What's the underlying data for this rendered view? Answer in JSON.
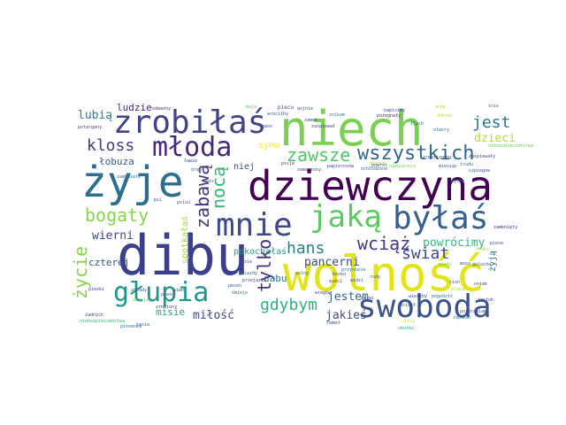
{
  "wordcloud": {
    "words": [
      {
        "text": "dibu",
        "color": "#3b3f8c"
      },
      {
        "text": "niech",
        "color": "#7ad151"
      },
      {
        "text": "dziewczyna",
        "color": "#440154"
      },
      {
        "text": "wolność",
        "color": "#e2e418"
      },
      {
        "text": "żyje",
        "color": "#2e6e8e"
      },
      {
        "text": "zrobiłaś",
        "color": "#414487"
      },
      {
        "text": "młoda",
        "color": "#482878"
      },
      {
        "text": "jaką",
        "color": "#5ec962"
      },
      {
        "text": "byłaś",
        "color": "#355f8d"
      },
      {
        "text": "mnie",
        "color": "#3e4a89"
      },
      {
        "text": "swoboda",
        "color": "#3b528b"
      },
      {
        "text": "głupia",
        "color": "#1f988b"
      },
      {
        "text": "wszystkich",
        "color": "#31688e"
      },
      {
        "text": "zawsze",
        "color": "#52c569"
      },
      {
        "text": "kloss",
        "color": "#443983"
      },
      {
        "text": "jest",
        "color": "#2a788e"
      },
      {
        "text": "bogaty",
        "color": "#86d549"
      },
      {
        "text": "zabawą",
        "color": "#46327e"
      },
      {
        "text": "nocą",
        "color": "#35b779"
      },
      {
        "text": "wciąż",
        "color": "#453781"
      },
      {
        "text": "świat",
        "color": "#3f4889"
      },
      {
        "text": "hans",
        "color": "#287d8e"
      },
      {
        "text": "tylko",
        "color": "#472d7b"
      },
      {
        "text": "życie",
        "color": "#86d549"
      },
      {
        "text": "gdybym",
        "color": "#2db27d"
      },
      {
        "text": "dzieci",
        "color": "#b5de2b"
      },
      {
        "text": "lubią",
        "color": "#277f8e"
      },
      {
        "text": "łobuza",
        "color": "#38598c"
      },
      {
        "text": "wierni",
        "color": "#404688"
      },
      {
        "text": "powrócimy",
        "color": "#35b779"
      },
      {
        "text": "pancerni",
        "color": "#3e4c8a"
      },
      {
        "text": "jestem",
        "color": "#31688e"
      },
      {
        "text": "jakieś",
        "color": "#3b518b"
      },
      {
        "text": "miłość",
        "color": "#3f4788"
      },
      {
        "text": "dabu",
        "color": "#2a788e"
      },
      {
        "text": "spotkałaś",
        "color": "#a0da39"
      },
      {
        "text": "czterej",
        "color": "#3b528b"
      },
      {
        "text": "misie",
        "color": "#21a685"
      },
      {
        "text": "ludzie",
        "color": "#482173"
      },
      {
        "text": "syna",
        "color": "#fde725"
      },
      {
        "text": "niej",
        "color": "#3e4a89"
      },
      {
        "text": "pokochałaś",
        "color": "#1f9e89"
      },
      {
        "text": "żyją",
        "color": "#2c738e"
      },
      {
        "text": "odważny",
        "color": "#46337e"
      },
      {
        "text": "piecu",
        "color": "#3e4989"
      },
      {
        "text": "wojnie",
        "color": "#365d8d"
      },
      {
        "text": "napisimy",
        "color": "#3f4788"
      },
      {
        "text": "rudy",
        "color": "#3a548c"
      },
      {
        "text": "moss",
        "color": "#39568c"
      },
      {
        "text": "żadnych",
        "color": "#3f4788"
      },
      {
        "text": "niebezpieczeństwa",
        "color": "#35b779"
      },
      {
        "text": "pieski",
        "color": "#453581"
      },
      {
        "text": "przejazie",
        "color": "#3e4989"
      },
      {
        "text": "pesen",
        "color": "#3b528b"
      },
      {
        "text": "śmieje",
        "color": "#2c738e"
      },
      {
        "text": "gdzie",
        "color": "#3e4989"
      },
      {
        "text": "wrogów",
        "color": "#46327e"
      },
      {
        "text": "zuści",
        "color": "#482878"
      },
      {
        "text": "namet",
        "color": "#3b528b"
      },
      {
        "text": "cion",
        "color": "#3e4c8a"
      },
      {
        "text": "pogodzić",
        "color": "#2c728e"
      },
      {
        "text": "miesiąc",
        "color": "#3e4c8a"
      },
      {
        "text": "ulicy",
        "color": "#bddf26"
      },
      {
        "text": "zlych",
        "color": "#3b528b"
      },
      {
        "text": "andy",
        "color": "#addc30"
      },
      {
        "text": "śnie",
        "color": "#2a788e"
      },
      {
        "text": "otwory",
        "color": "#2c728e"
      },
      {
        "text": "zrealizowni",
        "color": "#3e4989"
      },
      {
        "text": "dobrać",
        "color": "#a8db34"
      },
      {
        "text": "znikam",
        "color": "#25858e"
      },
      {
        "text": "trudu",
        "color": "#2c728e"
      },
      {
        "text": "zaśpiewały",
        "color": "#3e4a89"
      },
      {
        "text": "niebezpieczeństwa",
        "color": "#6ece58"
      },
      {
        "text": "szpiegów",
        "color": "#3b528b"
      },
      {
        "text": "papierosów",
        "color": "#414487"
      },
      {
        "text": "psije",
        "color": "#46327e"
      },
      {
        "text": "namarzony",
        "color": "#3b528b"
      },
      {
        "text": "ochłodzone",
        "color": "#2c728e"
      },
      {
        "text": "niebieskie",
        "color": "#7ad151"
      },
      {
        "text": "pożegnały",
        "color": "#472d7b"
      },
      {
        "text": "zaśpiewał",
        "color": "#3e4a89"
      },
      {
        "text": "skutku",
        "color": "#1fa088"
      },
      {
        "text": "życie",
        "color": "#2c728e"
      },
      {
        "text": "maja",
        "color": "#5ec962"
      },
      {
        "text": "wróciłby",
        "color": "#3b528b"
      },
      {
        "text": "gaos",
        "color": "#3e4989"
      },
      {
        "text": "ławie",
        "color": "#3e4c8a"
      },
      {
        "text": "zamknięte",
        "color": "#2c728e"
      },
      {
        "text": "jestok",
        "color": "#3e4989"
      },
      {
        "text": "osiek",
        "color": "#46327e"
      },
      {
        "text": "pozdrawiam",
        "color": "#3b528b"
      },
      {
        "text": "zapukać",
        "color": "#25858e"
      },
      {
        "text": "mois",
        "color": "#3e4989"
      },
      {
        "text": "psisu",
        "color": "#3b528b"
      },
      {
        "text": "dręb",
        "color": "#2c728e"
      },
      {
        "text": "dzieci",
        "color": "#addc30"
      },
      {
        "text": "psi",
        "color": "#3e4989"
      },
      {
        "text": "zamknięty",
        "color": "#46327e"
      },
      {
        "text": "piese",
        "color": "#3b528b"
      },
      {
        "text": "widzi",
        "color": "#3e4c8a"
      },
      {
        "text": "przyniesa",
        "color": "#2c728e"
      },
      {
        "text": "bosko",
        "color": "#3b528b"
      },
      {
        "text": "gwiazda",
        "color": "#2c728e"
      },
      {
        "text": "mówić",
        "color": "#5ec962"
      },
      {
        "text": "wierzby",
        "color": "#3e4989"
      },
      {
        "text": "kasia",
        "color": "#3b528b"
      },
      {
        "text": "piosenka",
        "color": "#2c728e"
      },
      {
        "text": "plakat",
        "color": "#addc30"
      },
      {
        "text": "piwo",
        "color": "#3e4989"
      },
      {
        "text": "zdrady",
        "color": "#3b528b"
      },
      {
        "text": "dzisiaj",
        "color": "#6ece58"
      },
      {
        "text": "zrobiony",
        "color": "#3e4989"
      },
      {
        "text": "pieśń",
        "color": "#3b528b"
      },
      {
        "text": "gwiazdy",
        "color": "#2c728e"
      },
      {
        "text": "drzwi",
        "color": "#3e4989"
      },
      {
        "text": "powrót",
        "color": "#3b528b"
      },
      {
        "text": "znaki",
        "color": "#a0da39"
      },
      {
        "text": "uciekł",
        "color": "#3e4c8a"
      },
      {
        "text": "wolny",
        "color": "#2c728e"
      },
      {
        "text": "zamek",
        "color": "#3b528b"
      },
      {
        "text": "potargany",
        "color": "#3e4989"
      }
    ]
  }
}
